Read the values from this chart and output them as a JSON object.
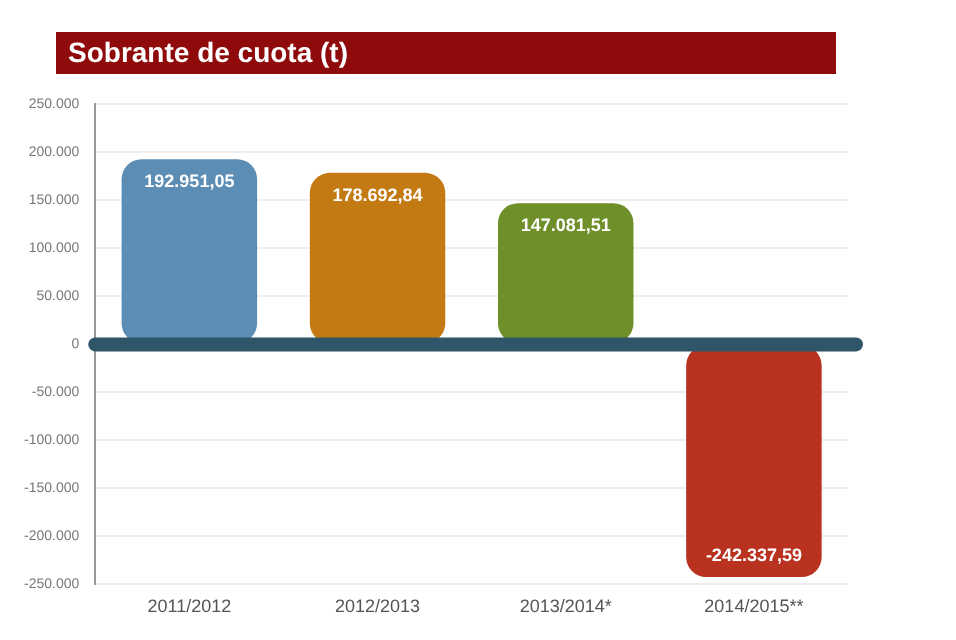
{
  "chart_data": {
    "type": "bar",
    "title": "Sobrante de cuota (t)",
    "categories": [
      "2011/2012",
      "2012/2013",
      "2013/2014*",
      "2014/2015**"
    ],
    "values": [
      192951.05,
      178692.84,
      147081.51,
      -242337.59
    ],
    "colors": [
      "#5b8db5",
      "#c47a12",
      "#6f8f2a",
      "#b8321f"
    ],
    "value_labels": [
      "192.951,05",
      "178.692,84",
      "147.081,51",
      "-242.337,59"
    ],
    "ylim": [
      -250000,
      250000
    ],
    "yticks": [
      {
        "value": -250000,
        "label": "-250.000"
      },
      {
        "value": -200000,
        "label": "-200.000"
      },
      {
        "value": -150000,
        "label": "-150.000"
      },
      {
        "value": -100000,
        "label": "-100.000"
      },
      {
        "value": -50000,
        "label": "-50.000"
      },
      0,
      {
        "value": 50000,
        "label": "50.000"
      },
      {
        "value": 100000,
        "label": "100.000"
      },
      {
        "value": 150000,
        "label": "150.000"
      },
      {
        "value": 200000,
        "label": "200.000"
      },
      {
        "value": 250000,
        "label": "250.000"
      }
    ],
    "ref_lines": [
      {
        "axis": "y",
        "value": 0,
        "color": "#2f5668"
      }
    ],
    "grid": "y",
    "legend": false
  }
}
